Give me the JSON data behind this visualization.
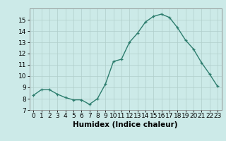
{
  "x": [
    0,
    1,
    2,
    3,
    4,
    5,
    6,
    7,
    8,
    9,
    10,
    11,
    12,
    13,
    14,
    15,
    16,
    17,
    18,
    19,
    20,
    21,
    22,
    23
  ],
  "y": [
    8.3,
    8.8,
    8.8,
    8.4,
    8.1,
    7.9,
    7.9,
    7.5,
    8.0,
    9.3,
    11.3,
    11.5,
    13.0,
    13.8,
    14.8,
    15.3,
    15.5,
    15.2,
    14.3,
    13.2,
    12.4,
    11.2,
    10.2,
    9.1
  ],
  "xlabel": "Humidex (Indice chaleur)",
  "ylim": [
    7,
    16
  ],
  "xlim": [
    -0.5,
    23.5
  ],
  "yticks": [
    7,
    8,
    9,
    10,
    11,
    12,
    13,
    14,
    15
  ],
  "xticks": [
    0,
    1,
    2,
    3,
    4,
    5,
    6,
    7,
    8,
    9,
    10,
    11,
    12,
    13,
    14,
    15,
    16,
    17,
    18,
    19,
    20,
    21,
    22,
    23
  ],
  "line_color": "#2d7d6e",
  "bg_color": "#cceae8",
  "grid_color": "#b0ceca",
  "label_fontsize": 7.5,
  "tick_fontsize": 6.5
}
